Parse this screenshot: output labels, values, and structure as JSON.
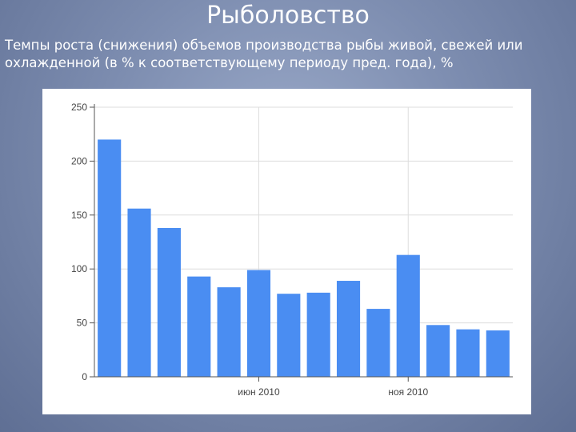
{
  "slide": {
    "title": "Рыболовство",
    "subtitle": "Темпы роста (снижения) объемов производства рыбы живой, свежей или охлажденной (в % к соответствующему периоду пред. года), %"
  },
  "chart_data": {
    "type": "bar",
    "title": "",
    "xlabel": "",
    "ylabel": "",
    "ylim": [
      0,
      250
    ],
    "yticks": [
      0,
      50,
      100,
      150,
      200,
      250
    ],
    "x_labels": [
      {
        "label": "июн 2010",
        "index": 4.5
      },
      {
        "label": "ноя 2010",
        "index": 9.5
      }
    ],
    "values": [
      220,
      156,
      138,
      93,
      83,
      99,
      77,
      78,
      89,
      63,
      113,
      48,
      44,
      43
    ],
    "grid": true,
    "legend": "none",
    "colors": {
      "bar": "#4a8df2",
      "grid": "#dddddd",
      "axis": "#555555"
    }
  }
}
